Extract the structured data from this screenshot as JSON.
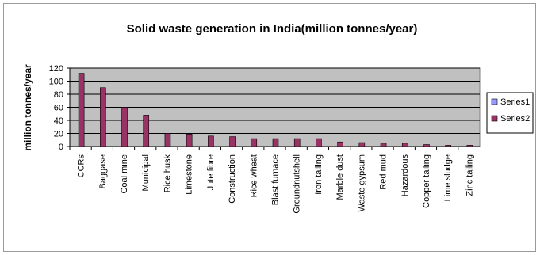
{
  "chart_data": {
    "type": "bar",
    "title": "Solid waste generation in India(million tonnes/year)",
    "xlabel": "",
    "ylabel": "million tonnes/year",
    "ylim": [
      0,
      120
    ],
    "yticks": [
      0,
      20,
      40,
      60,
      80,
      100,
      120
    ],
    "grid": true,
    "legend_position": "right",
    "categories": [
      "CCRs",
      "Baggase",
      "Coal mine",
      "Municipal",
      "Rice husk",
      "Limestone",
      "Jute fibre",
      "Construction",
      "Rice wheat",
      "Blast furnace",
      "Groundnutshell",
      "Iron tailing",
      "Marble dust",
      "Waste gypsum",
      "Red mud",
      "Hazardous",
      "Copper tailing",
      "Lime sludge",
      "Zinc tailing"
    ],
    "series": [
      {
        "name": "Series1",
        "color": "#9999ff",
        "values": [
          0,
          0,
          0,
          0,
          0,
          0,
          0,
          0,
          0,
          0,
          0,
          0,
          0,
          0,
          0,
          0,
          0,
          0,
          0
        ]
      },
      {
        "name": "Series2",
        "color": "#993366",
        "values": [
          112,
          90,
          60,
          48,
          20,
          19,
          16,
          15,
          12,
          12,
          12,
          12,
          7,
          6,
          5,
          5,
          3,
          2,
          2
        ]
      }
    ],
    "plot_background": "#c0c0c0"
  }
}
